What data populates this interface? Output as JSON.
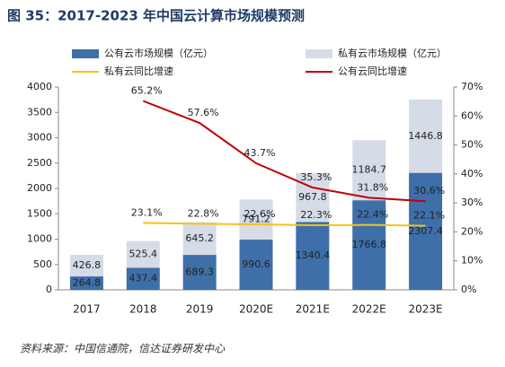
{
  "chart_data": {
    "type": "bar",
    "title": "图 35：2017-2023 年中国云计算市场规模预测",
    "source": "资料来源：中国信通院，信达证券研发中心",
    "categories": [
      "2017",
      "2018",
      "2019",
      "2020E",
      "2021E",
      "2022E",
      "2023E"
    ],
    "stacked": true,
    "series": [
      {
        "name": "公有云市场规模（亿元）",
        "type": "bar",
        "color": "#3e6fa8",
        "values": [
          264.8,
          437.4,
          689.3,
          990.6,
          1340.4,
          1766.8,
          2307.4
        ]
      },
      {
        "name": "私有云市场规模（亿元）",
        "type": "bar",
        "color": "#d5dce7",
        "values": [
          426.8,
          525.4,
          645.2,
          791.2,
          967.8,
          1184.7,
          1446.8
        ]
      },
      {
        "name": "私有云同比增速",
        "type": "line",
        "axis": "y2",
        "color": "#f2c21b",
        "values": [
          null,
          23.1,
          22.8,
          22.6,
          22.3,
          22.4,
          22.1
        ],
        "value_labels": [
          null,
          "23.1%",
          "22.8%",
          "22.6%",
          "22.3%",
          "22.4%",
          "22.1%"
        ]
      },
      {
        "name": "公有云同比增速",
        "type": "line",
        "axis": "y2",
        "color": "#c00000",
        "values": [
          null,
          65.2,
          57.6,
          43.7,
          35.3,
          31.8,
          30.6
        ],
        "value_labels": [
          null,
          "65.2%",
          "57.6%",
          "43.7%",
          "35.3%",
          "31.8%",
          "30.6%"
        ]
      }
    ],
    "ylim": [
      0,
      4000
    ],
    "yticks": [
      0,
      500,
      1000,
      1500,
      2000,
      2500,
      3000,
      3500,
      4000
    ],
    "y2lim": [
      0,
      70
    ],
    "y2ticks": [
      {
        "value": 0,
        "label": "0%"
      },
      {
        "value": 10,
        "label": "10%"
      },
      {
        "value": 20,
        "label": "20%"
      },
      {
        "value": 30,
        "label": "30%"
      },
      {
        "value": 40,
        "label": "40%"
      },
      {
        "value": 50,
        "label": "50%"
      },
      {
        "value": 60,
        "label": "60%"
      },
      {
        "value": 70,
        "label": "70%"
      }
    ]
  }
}
